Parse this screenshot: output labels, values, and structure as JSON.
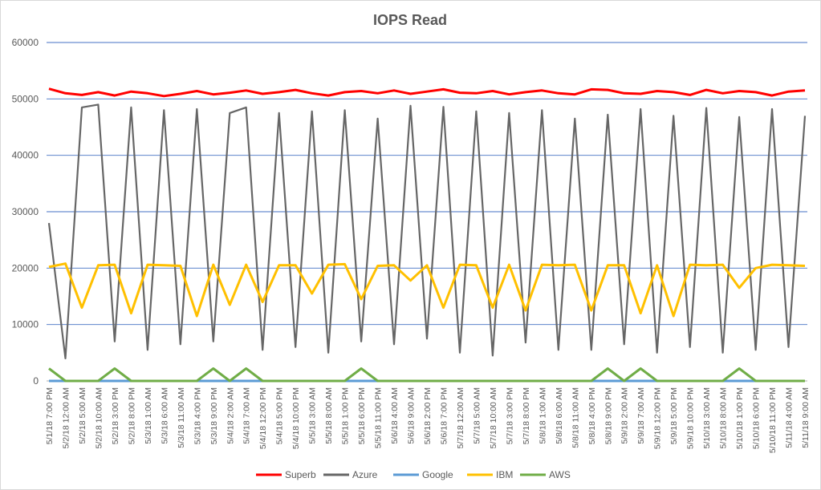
{
  "chart_data": {
    "type": "line",
    "title": "IOPS Read",
    "xlabel": "",
    "ylabel": "",
    "ylim": [
      0,
      60000
    ],
    "yticks": [
      0,
      10000,
      20000,
      30000,
      40000,
      50000,
      60000
    ],
    "ytick_labels": [
      "0",
      "10000",
      "20000",
      "30000",
      "40000",
      "50000",
      "60000"
    ],
    "grid": true,
    "legend_position": "bottom",
    "x_tick_labels": [
      "5/1/18 7:00 PM",
      "5/2/18 12:00 AM",
      "5/2/18 5:00 AM",
      "5/2/18 10:00 AM",
      "5/2/18 3:00 PM",
      "5/2/18 8:00 PM",
      "5/3/18 1:00 AM",
      "5/3/18 6:00 AM",
      "5/3/18 11:00 AM",
      "5/3/18 4:00 PM",
      "5/3/18 9:00 PM",
      "5/4/18 2:00 AM",
      "5/4/18 7:00 AM",
      "5/4/18 12:00 PM",
      "5/4/18 5:00 PM",
      "5/4/18 10:00 PM",
      "5/5/18 3:00 AM",
      "5/5/18 8:00 AM",
      "5/5/18 1:00 PM",
      "5/5/18 6:00 PM",
      "5/5/18 11:00 PM",
      "5/6/18 4:00 AM",
      "5/6/18 9:00 AM",
      "5/6/18 2:00 PM",
      "5/6/18 7:00 PM",
      "5/7/18 12:00 AM",
      "5/7/18 5:00 AM",
      "5/7/18 10:00 AM",
      "5/7/18 3:00 PM",
      "5/7/18 8:00 PM",
      "5/8/18 1:00 AM",
      "5/8/18 6:00 AM",
      "5/8/18 11:00 AM",
      "5/8/18 4:00 PM",
      "5/8/18 9:00 PM",
      "5/9/18 2:00 AM",
      "5/9/18 7:00 AM",
      "5/9/18 12:00 PM",
      "5/9/18 5:00 PM",
      "5/9/18 10:00 PM",
      "5/10/18 3:00 AM",
      "5/10/18 8:00 AM",
      "5/10/18 1:00 PM",
      "5/10/18 6:00 PM",
      "5/10/18 11:00 PM",
      "5/11/18 4:00 AM",
      "5/11/18 9:00 AM"
    ],
    "series": [
      {
        "name": "Superb",
        "color": "#ff0000",
        "values": [
          51800,
          51000,
          50700,
          51200,
          50600,
          51300,
          51000,
          50500,
          50900,
          51400,
          50800,
          51100,
          51500,
          50900,
          51200,
          51600,
          51000,
          50600,
          51200,
          51400,
          51000,
          51500,
          50900,
          51300,
          51700,
          51100,
          51000,
          51400,
          50800,
          51200,
          51500,
          51000,
          50800,
          51700,
          51600,
          51000,
          50900,
          51400,
          51200,
          50700,
          51600,
          51000,
          51400,
          51200,
          50600,
          51300,
          51500
        ]
      },
      {
        "name": "Azure",
        "color": "#666666",
        "values": [
          28000,
          4000,
          48500,
          49000,
          7000,
          48500,
          5500,
          48000,
          6500,
          48200,
          7000,
          47500,
          48500,
          5500,
          47500,
          6000,
          47800,
          5000,
          48000,
          7000,
          46500,
          6500,
          48800,
          7500,
          48600,
          5000,
          47800,
          4500,
          47500,
          6800,
          48000,
          5500,
          46500,
          5500,
          47200,
          6500,
          48200,
          5000,
          47000,
          6000,
          48400,
          5000,
          46800,
          5500,
          48200,
          6000,
          47000
        ]
      },
      {
        "name": "Google",
        "color": "#5b9bd5",
        "values": [
          0,
          0,
          0,
          0,
          0,
          0,
          0,
          0,
          0,
          0,
          0,
          0,
          0,
          0,
          0,
          0,
          0,
          0,
          0,
          0,
          0,
          0,
          0,
          0,
          0,
          0,
          0,
          0,
          0,
          0,
          0,
          0,
          0,
          0,
          0,
          0,
          0,
          0,
          0,
          0,
          0,
          0,
          0,
          0,
          0,
          0,
          0
        ]
      },
      {
        "name": "IBM",
        "color": "#ffc000",
        "values": [
          20200,
          20800,
          13000,
          20500,
          20600,
          12000,
          20600,
          20500,
          20400,
          11500,
          20600,
          13500,
          20600,
          14000,
          20500,
          20500,
          15500,
          20600,
          20700,
          14500,
          20400,
          20500,
          17800,
          20500,
          13000,
          20600,
          20500,
          13000,
          20600,
          12500,
          20600,
          20500,
          20600,
          12500,
          20500,
          20500,
          12000,
          20500,
          11500,
          20600,
          20500,
          20600,
          16500,
          20000,
          20600,
          20500,
          20400
        ]
      },
      {
        "name": "AWS",
        "color": "#70ad47",
        "values": [
          2200,
          0,
          0,
          0,
          2200,
          0,
          0,
          0,
          0,
          0,
          2200,
          0,
          2200,
          0,
          0,
          0,
          0,
          0,
          0,
          2200,
          0,
          0,
          0,
          0,
          0,
          0,
          0,
          0,
          0,
          0,
          0,
          0,
          0,
          0,
          2200,
          0,
          2200,
          0,
          0,
          0,
          0,
          0,
          2200,
          0,
          0,
          0,
          0
        ]
      }
    ]
  }
}
